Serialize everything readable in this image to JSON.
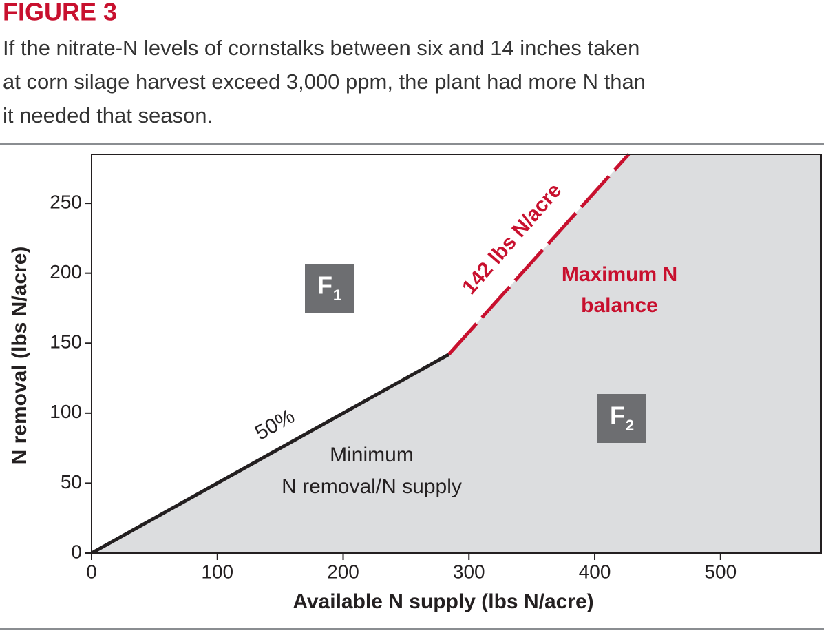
{
  "chart_data": {
    "type": "line",
    "title": "FIGURE 3",
    "subtitle": [
      "If the nitrate-N levels of cornstalks between six and 14 inches taken",
      "at corn silage harvest exceed 3,000 ppm, the plant had more N than",
      "it needed that season."
    ],
    "x_label": "Available N supply (lbs N/acre)",
    "y_label": "N removal (lbs N/acre)",
    "xlim": [
      0,
      580
    ],
    "ylim": [
      0,
      285
    ],
    "xticks": [
      0,
      100,
      200,
      300,
      400,
      500
    ],
    "yticks": [
      0,
      50,
      100,
      150,
      200,
      250
    ],
    "area_color": "#dcdddf",
    "series": [
      {
        "color": "#231f20",
        "x": [
          0,
          284
        ],
        "values": [
          0,
          142
        ]
      },
      {
        "color": "#c8102e",
        "x": [
          284,
          427
        ],
        "values": [
          142,
          285
        ],
        "dashed": true
      }
    ],
    "annotations": [
      "50%",
      "142 lbs N/acre",
      "Maximum N",
      "balance",
      "Minimum",
      "N removal/N supply"
    ],
    "region_labels": [
      {
        "text": "F",
        "subscript": "1"
      },
      {
        "text": "F",
        "subscript": "2"
      }
    ]
  }
}
